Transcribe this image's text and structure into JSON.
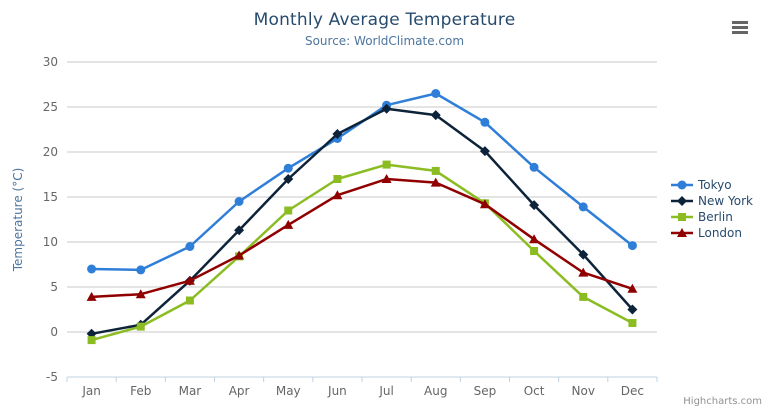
{
  "header": {
    "title": "Monthly Average Temperature",
    "subtitle": "Source: WorldClimate.com"
  },
  "credits": {
    "label": "Highcharts.com"
  },
  "style": {
    "title_color": "#274b6d",
    "subtitle_color": "#4d759e",
    "grid_color": "#c8c8c8",
    "axis_line_color": "#c0d0e0",
    "tick_label_color": "#666666",
    "axis_title_color": "#4d759e",
    "legend_text_color": "#274b6d",
    "credits_color": "#909090",
    "menu_icon_color": "#666666"
  },
  "chart_data": {
    "type": "line",
    "title": "Monthly Average Temperature",
    "subtitle": "Source: WorldClimate.com",
    "categories": [
      "Jan",
      "Feb",
      "Mar",
      "Apr",
      "May",
      "Jun",
      "Jul",
      "Aug",
      "Sep",
      "Oct",
      "Nov",
      "Dec"
    ],
    "series": [
      {
        "name": "Tokyo",
        "color": "#2f7ed8",
        "marker": "circle",
        "values": [
          7.0,
          6.9,
          9.5,
          14.5,
          18.2,
          21.5,
          25.2,
          26.5,
          23.3,
          18.3,
          13.9,
          9.6
        ]
      },
      {
        "name": "New York",
        "color": "#0d233a",
        "marker": "diamond",
        "values": [
          -0.2,
          0.8,
          5.7,
          11.3,
          17.0,
          22.0,
          24.8,
          24.1,
          20.1,
          14.1,
          8.6,
          2.5
        ]
      },
      {
        "name": "Berlin",
        "color": "#8bbc21",
        "marker": "square",
        "values": [
          -0.9,
          0.6,
          3.5,
          8.4,
          13.5,
          17.0,
          18.6,
          17.9,
          14.3,
          9.0,
          3.9,
          1.0
        ]
      },
      {
        "name": "London",
        "color": "#910000",
        "marker": "triangle",
        "values": [
          3.9,
          4.2,
          5.7,
          8.5,
          11.9,
          15.2,
          17.0,
          16.6,
          14.2,
          10.3,
          6.6,
          4.8
        ]
      }
    ],
    "xlabel": "",
    "ylabel": "Temperature (°C)",
    "ylim": [
      -5,
      30
    ],
    "yticks": [
      -5,
      0,
      5,
      10,
      15,
      20,
      25,
      30
    ],
    "grid": true,
    "legend_position": "right"
  }
}
